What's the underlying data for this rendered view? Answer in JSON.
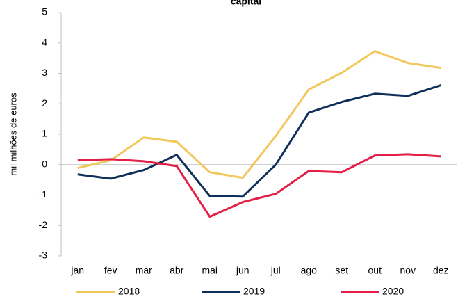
{
  "chart_data": {
    "type": "line",
    "title": "capital",
    "ylabel": "mil milhões de euros",
    "categories": [
      "jan",
      "fev",
      "mar",
      "abr",
      "mai",
      "jun",
      "jul",
      "ago",
      "set",
      "out",
      "nov",
      "dez"
    ],
    "series": [
      {
        "name": "2018",
        "color": "#f2c75c",
        "values": [
          -0.11,
          0.14,
          0.89,
          0.75,
          -0.25,
          -0.43,
          0.94,
          2.47,
          3.02,
          3.73,
          3.34,
          3.18
        ]
      },
      {
        "name": "2019",
        "color": "#0d2f5a",
        "values": [
          -0.32,
          -0.46,
          -0.18,
          0.32,
          -1.03,
          -1.05,
          0,
          1.71,
          2.06,
          2.33,
          2.26,
          2.61
        ]
      },
      {
        "name": "2020",
        "color": "#e41f45",
        "values": [
          0.14,
          0.18,
          0.11,
          -0.05,
          -1.71,
          -1.23,
          -0.96,
          -0.21,
          -0.25,
          0.3,
          0.34,
          0.27
        ]
      }
    ],
    "ylim": [
      -3,
      5
    ],
    "yticks": [
      -3,
      -2,
      -1,
      0,
      1,
      2,
      3,
      4,
      5
    ],
    "grid": false,
    "legend": "bottom"
  }
}
